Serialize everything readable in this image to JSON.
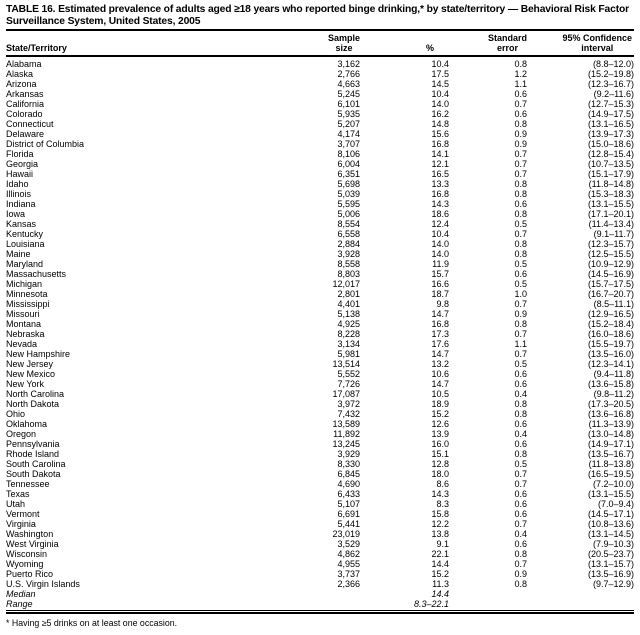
{
  "title": "TABLE 16. Estimated prevalence of adults aged ≥18 years who reported binge drinking,* by state/territory — Behavioral Risk Factor Surveillance System, United States, 2005",
  "footnote": "* Having ≥5 drinks on at least one occasion.",
  "header": {
    "state": "State/Territory",
    "sample_line1": "Sample",
    "sample_line2": "size",
    "percent": "%",
    "se_line1": "Standard",
    "se_line2": "error",
    "ci_line1": "95% Confidence",
    "ci_line2": "interval"
  },
  "table": {
    "rows": [
      {
        "state": "Alabama",
        "sample": "3,162",
        "pct": "10.4",
        "se": "0.8",
        "ci": "(8.8–12.0)"
      },
      {
        "state": "Alaska",
        "sample": "2,766",
        "pct": "17.5",
        "se": "1.2",
        "ci": "(15.2–19.8)"
      },
      {
        "state": "Arizona",
        "sample": "4,663",
        "pct": "14.5",
        "se": "1.1",
        "ci": "(12.3–16.7)"
      },
      {
        "state": "Arkansas",
        "sample": "5,245",
        "pct": "10.4",
        "se": "0.6",
        "ci": "(9.2–11.6)"
      },
      {
        "state": "California",
        "sample": "6,101",
        "pct": "14.0",
        "se": "0.7",
        "ci": "(12.7–15.3)"
      },
      {
        "state": "Colorado",
        "sample": "5,935",
        "pct": "16.2",
        "se": "0.6",
        "ci": "(14.9–17.5)"
      },
      {
        "state": "Connecticut",
        "sample": "5,207",
        "pct": "14.8",
        "se": "0.8",
        "ci": "(13.1–16.5)"
      },
      {
        "state": "Delaware",
        "sample": "4,174",
        "pct": "15.6",
        "se": "0.9",
        "ci": "(13.9–17.3)"
      },
      {
        "state": "District of Columbia",
        "sample": "3,707",
        "pct": "16.8",
        "se": "0.9",
        "ci": "(15.0–18.6)"
      },
      {
        "state": "Florida",
        "sample": "8,106",
        "pct": "14.1",
        "se": "0.7",
        "ci": "(12.8–15.4)"
      },
      {
        "state": "Georgia",
        "sample": "6,004",
        "pct": "12.1",
        "se": "0.7",
        "ci": "(10.7–13.5)"
      },
      {
        "state": "Hawaii",
        "sample": "6,351",
        "pct": "16.5",
        "se": "0.7",
        "ci": "(15.1–17.9)"
      },
      {
        "state": "Idaho",
        "sample": "5,698",
        "pct": "13.3",
        "se": "0.8",
        "ci": "(11.8–14.8)"
      },
      {
        "state": "Illinois",
        "sample": "5,039",
        "pct": "16.8",
        "se": "0.8",
        "ci": "(15.3–18.3)"
      },
      {
        "state": "Indiana",
        "sample": "5,595",
        "pct": "14.3",
        "se": "0.6",
        "ci": "(13.1–15.5)"
      },
      {
        "state": "Iowa",
        "sample": "5,006",
        "pct": "18.6",
        "se": "0.8",
        "ci": "(17.1–20.1)"
      },
      {
        "state": "Kansas",
        "sample": "8,554",
        "pct": "12.4",
        "se": "0.5",
        "ci": "(11.4–13.4)"
      },
      {
        "state": "Kentucky",
        "sample": "6,558",
        "pct": "10.4",
        "se": "0.7",
        "ci": "(9.1–11.7)"
      },
      {
        "state": "Louisiana",
        "sample": "2,884",
        "pct": "14.0",
        "se": "0.8",
        "ci": "(12.3–15.7)"
      },
      {
        "state": "Maine",
        "sample": "3,928",
        "pct": "14.0",
        "se": "0.8",
        "ci": "(12.5–15.5)"
      },
      {
        "state": "Maryland",
        "sample": "8,558",
        "pct": "11.9",
        "se": "0.5",
        "ci": "(10.9–12.9)"
      },
      {
        "state": "Massachusetts",
        "sample": "8,803",
        "pct": "15.7",
        "se": "0.6",
        "ci": "(14.5–16.9)"
      },
      {
        "state": "Michigan",
        "sample": "12,017",
        "pct": "16.6",
        "se": "0.5",
        "ci": "(15.7–17.5)"
      },
      {
        "state": "Minnesota",
        "sample": "2,801",
        "pct": "18.7",
        "se": "1.0",
        "ci": "(16.7–20.7)"
      },
      {
        "state": "Mississippi",
        "sample": "4,401",
        "pct": "9.8",
        "se": "0.7",
        "ci": "(8.5–11.1)"
      },
      {
        "state": "Missouri",
        "sample": "5,138",
        "pct": "14.7",
        "se": "0.9",
        "ci": "(12.9–16.5)"
      },
      {
        "state": "Montana",
        "sample": "4,925",
        "pct": "16.8",
        "se": "0.8",
        "ci": "(15.2–18.4)"
      },
      {
        "state": "Nebraska",
        "sample": "8,228",
        "pct": "17.3",
        "se": "0.7",
        "ci": "(16.0–18.6)"
      },
      {
        "state": "Nevada",
        "sample": "3,134",
        "pct": "17.6",
        "se": "1.1",
        "ci": "(15.5–19.7)"
      },
      {
        "state": "New Hampshire",
        "sample": "5,981",
        "pct": "14.7",
        "se": "0.7",
        "ci": "(13.5–16.0)"
      },
      {
        "state": "New Jersey",
        "sample": "13,514",
        "pct": "13.2",
        "se": "0.5",
        "ci": "(12.3–14.1)"
      },
      {
        "state": "New Mexico",
        "sample": "5,552",
        "pct": "10.6",
        "se": "0.6",
        "ci": "(9.4–11.8)"
      },
      {
        "state": "New York",
        "sample": "7,726",
        "pct": "14.7",
        "se": "0.6",
        "ci": "(13.6–15.8)"
      },
      {
        "state": "North Carolina",
        "sample": "17,087",
        "pct": "10.5",
        "se": "0.4",
        "ci": "(9.8–11.2)"
      },
      {
        "state": "North Dakota",
        "sample": "3,972",
        "pct": "18.9",
        "se": "0.8",
        "ci": "(17.3–20.5)"
      },
      {
        "state": "Ohio",
        "sample": "7,432",
        "pct": "15.2",
        "se": "0.8",
        "ci": "(13.6–16.8)"
      },
      {
        "state": "Oklahoma",
        "sample": "13,589",
        "pct": "12.6",
        "se": "0.6",
        "ci": "(11.3–13.9)"
      },
      {
        "state": "Oregon",
        "sample": "11,892",
        "pct": "13.9",
        "se": "0.4",
        "ci": "(13.0–14.8)"
      },
      {
        "state": "Pennsylvania",
        "sample": "13,245",
        "pct": "16.0",
        "se": "0.6",
        "ci": "(14.9–17.1)"
      },
      {
        "state": "Rhode Island",
        "sample": "3,929",
        "pct": "15.1",
        "se": "0.8",
        "ci": "(13.5–16.7)"
      },
      {
        "state": "South Carolina",
        "sample": "8,330",
        "pct": "12.8",
        "se": "0.5",
        "ci": "(11.8–13.8)"
      },
      {
        "state": "South Dakota",
        "sample": "6,845",
        "pct": "18.0",
        "se": "0.7",
        "ci": "(16.5–19.5)"
      },
      {
        "state": "Tennessee",
        "sample": "4,690",
        "pct": "8.6",
        "se": "0.7",
        "ci": "(7.2–10.0)"
      },
      {
        "state": "Texas",
        "sample": "6,433",
        "pct": "14.3",
        "se": "0.6",
        "ci": "(13.1–15.5)"
      },
      {
        "state": "Utah",
        "sample": "5,107",
        "pct": "8.3",
        "se": "0.6",
        "ci": "(7.0–9.4)"
      },
      {
        "state": "Vermont",
        "sample": "6,691",
        "pct": "15.8",
        "se": "0.6",
        "ci": "(14.5–17.1)"
      },
      {
        "state": "Virginia",
        "sample": "5,441",
        "pct": "12.2",
        "se": "0.7",
        "ci": "(10.8–13.6)"
      },
      {
        "state": "Washington",
        "sample": "23,019",
        "pct": "13.8",
        "se": "0.4",
        "ci": "(13.1–14.5)"
      },
      {
        "state": "West Virginia",
        "sample": "3,529",
        "pct": "9.1",
        "se": "0.6",
        "ci": "(7.9–10.3)"
      },
      {
        "state": "Wisconsin",
        "sample": "4,862",
        "pct": "22.1",
        "se": "0.8",
        "ci": "(20.5–23.7)"
      },
      {
        "state": "Wyoming",
        "sample": "4,955",
        "pct": "14.4",
        "se": "0.7",
        "ci": "(13.1–15.7)"
      },
      {
        "state": "Puerto Rico",
        "sample": "3,737",
        "pct": "15.2",
        "se": "0.9",
        "ci": "(13.5–16.9)"
      },
      {
        "state": "U.S. Virgin Islands",
        "sample": "2,366",
        "pct": "11.3",
        "se": "0.8",
        "ci": "(9.7–12.9)"
      },
      {
        "state": "Median",
        "sample": "",
        "pct": "14.4",
        "se": "",
        "ci": "",
        "italic": true
      },
      {
        "state": "Range",
        "sample": "",
        "pct": "8.3–22.1",
        "se": "",
        "ci": "",
        "italic": true
      }
    ]
  }
}
